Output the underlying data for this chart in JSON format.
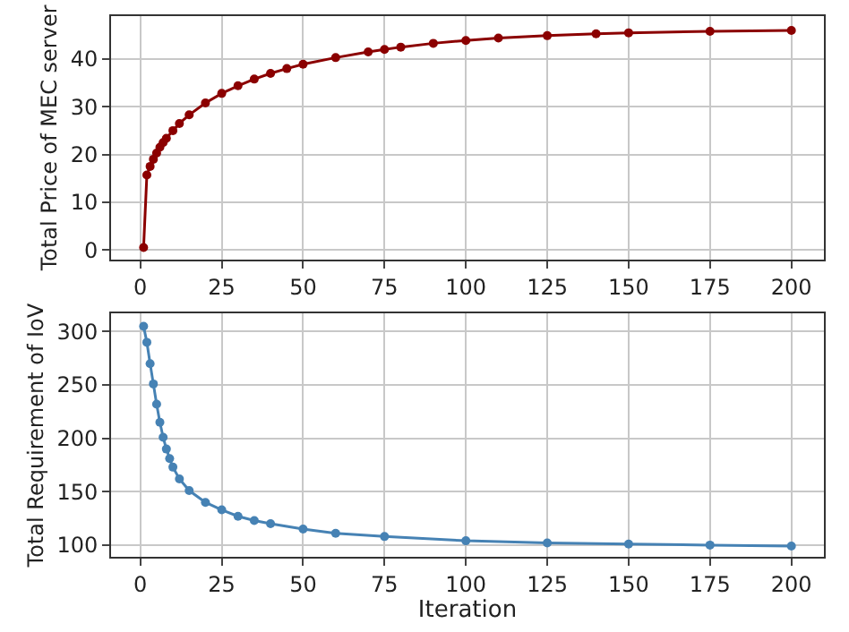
{
  "chart_data": [
    {
      "type": "line",
      "ylabel": "Total Price of MEC server",
      "x": [
        1,
        2,
        3,
        4,
        5,
        6,
        7,
        8,
        10,
        12,
        15,
        20,
        25,
        30,
        35,
        40,
        45,
        50,
        60,
        70,
        75,
        80,
        90,
        100,
        110,
        125,
        140,
        150,
        175,
        200
      ],
      "series": [
        {
          "color": "#8b0000",
          "values": [
            0.5,
            15.7,
            17.5,
            19,
            20.3,
            21.5,
            22.5,
            23.4,
            25,
            26.5,
            28.3,
            30.8,
            32.8,
            34.4,
            35.8,
            37,
            38,
            38.9,
            40.3,
            41.5,
            42,
            42.5,
            43.3,
            43.9,
            44.4,
            44.9,
            45.3,
            45.5,
            45.8,
            46
          ]
        }
      ],
      "xlim": [
        -9,
        210
      ],
      "xticks": [
        0,
        25,
        50,
        75,
        100,
        125,
        150,
        175,
        200
      ],
      "ylim": [
        -2,
        49
      ],
      "yticks": [
        0,
        10,
        20,
        30,
        40
      ],
      "grid": true,
      "marker": "circle",
      "line_style": "solid"
    },
    {
      "type": "line",
      "xlabel": "Iteration",
      "ylabel": "Total Requirement of IoV",
      "x": [
        1,
        2,
        3,
        4,
        5,
        6,
        7,
        8,
        9,
        10,
        12,
        15,
        20,
        25,
        30,
        35,
        40,
        50,
        60,
        75,
        100,
        125,
        150,
        175,
        200
      ],
      "series": [
        {
          "color": "#4682b4",
          "values": [
            305,
            290,
            270,
            251,
            232,
            215,
            201,
            190,
            181,
            173,
            162,
            151,
            140,
            133,
            127,
            123,
            120,
            115,
            111,
            108,
            104,
            102,
            101,
            100,
            99
          ]
        }
      ],
      "xlim": [
        -9,
        210
      ],
      "xticks": [
        0,
        25,
        50,
        75,
        100,
        125,
        150,
        175,
        200
      ],
      "ylim": [
        89,
        317
      ],
      "yticks": [
        100,
        150,
        200,
        250,
        300
      ],
      "grid": true,
      "marker": "circle",
      "line_style": "solid"
    }
  ]
}
